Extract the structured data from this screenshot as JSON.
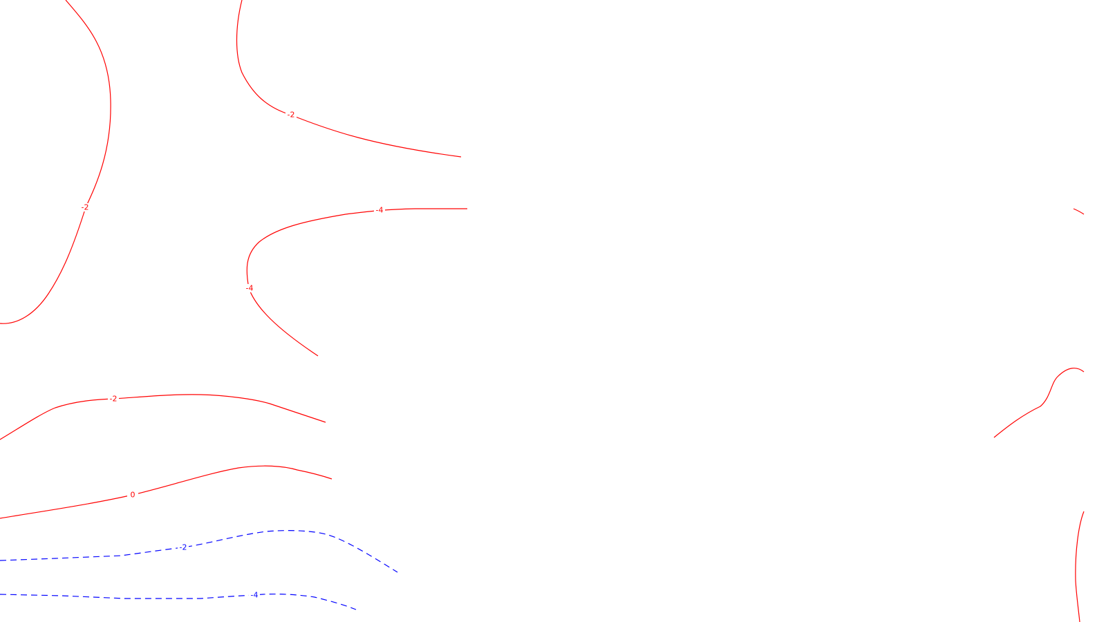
{
  "map": {
    "colors": {
      "positive": "#ff0000",
      "negative": "#0000ff",
      "background": "#ffffff"
    },
    "contours": [
      {
        "value": -2,
        "label": "-2",
        "color": "positive",
        "dashed": false
      },
      {
        "value": -2,
        "label": "-2",
        "color": "positive",
        "dashed": false
      },
      {
        "value": -4,
        "label": "-4",
        "color": "positive",
        "dashed": false
      },
      {
        "value": -2,
        "label": "-2",
        "color": "positive",
        "dashed": false
      },
      {
        "value": 0,
        "label": "0",
        "color": "positive",
        "dashed": false
      },
      {
        "value": -2,
        "label": "-2",
        "color": "negative",
        "dashed": true
      },
      {
        "value": -4,
        "label": "-4",
        "color": "negative",
        "dashed": true
      },
      {
        "value": null,
        "label": "",
        "color": "positive",
        "dashed": false
      },
      {
        "value": null,
        "label": "",
        "color": "positive",
        "dashed": false
      },
      {
        "value": null,
        "label": "",
        "color": "positive",
        "dashed": false
      }
    ]
  }
}
